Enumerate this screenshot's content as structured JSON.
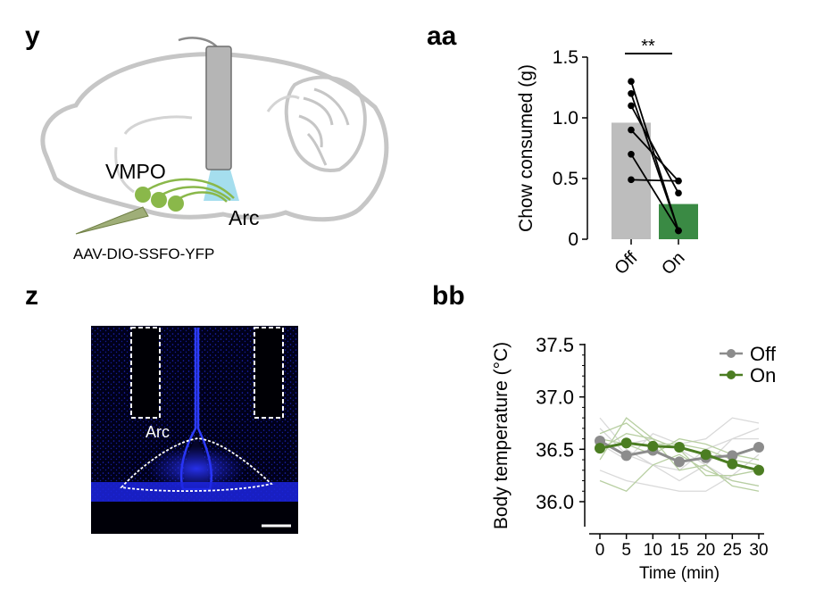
{
  "panels": {
    "y": "y",
    "z": "z",
    "aa": "aa",
    "bb": "bb"
  },
  "diagram": {
    "region_label": "VMPO",
    "target_label": "Arc",
    "virus_label": "AAV-DIO-SSFO-YFP",
    "colors": {
      "neuron": "#8ab84a",
      "fiber": "#c8c8c8",
      "light": "#8fd6ea",
      "outline": "#c6c6c6"
    }
  },
  "micrograph": {
    "region_label": "Arc",
    "colors": {
      "background": "#000010",
      "stain": "#1a22d8"
    }
  },
  "chart_data": [
    {
      "type": "bar",
      "panel": "aa",
      "categories": [
        "Off",
        "On"
      ],
      "values": [
        0.96,
        0.29
      ],
      "paired": [
        [
          1.3,
          0.07
        ],
        [
          1.2,
          0.07
        ],
        [
          1.1,
          0.38
        ],
        [
          0.9,
          0.48
        ],
        [
          0.7,
          0.07
        ],
        [
          0.49,
          0.48
        ]
      ],
      "title": "",
      "xlabel": "",
      "ylabel": "Chow consumed (g)",
      "ylim": [
        0,
        1.5
      ],
      "yticks": [
        "0",
        "0.5",
        "1.0",
        "1.5"
      ],
      "significance": "**",
      "colors": {
        "Off": "#bdbdbd",
        "On": "#3a8a44"
      }
    },
    {
      "type": "line",
      "panel": "bb",
      "x": [
        0,
        5,
        10,
        15,
        20,
        25,
        30
      ],
      "xticks": [
        "0",
        "5",
        "10",
        "15",
        "20",
        "25",
        "30"
      ],
      "series": [
        {
          "name": "Off",
          "color": "#8c8c8c",
          "values": [
            36.58,
            36.44,
            36.49,
            36.38,
            36.42,
            36.44,
            36.52
          ]
        },
        {
          "name": "On",
          "color": "#4b7d22",
          "values": [
            36.51,
            36.56,
            36.53,
            36.52,
            36.45,
            36.36,
            36.3
          ]
        }
      ],
      "individual": {
        "Off": [
          [
            36.7,
            36.45,
            36.35,
            36.2,
            36.35,
            36.6,
            36.7
          ],
          [
            36.5,
            36.55,
            36.6,
            36.5,
            36.35,
            36.2,
            36.15
          ],
          [
            36.3,
            36.2,
            36.15,
            36.1,
            36.1,
            36.25,
            36.45
          ],
          [
            36.55,
            36.4,
            36.65,
            36.55,
            36.6,
            36.8,
            36.75
          ],
          [
            36.8,
            36.5,
            36.35,
            36.3,
            36.5,
            36.6,
            36.6
          ]
        ],
        "On": [
          [
            36.4,
            36.8,
            36.6,
            36.3,
            36.35,
            36.15,
            36.1
          ],
          [
            36.65,
            36.75,
            36.55,
            36.55,
            36.5,
            36.4,
            36.35
          ],
          [
            36.2,
            36.1,
            36.35,
            36.45,
            36.3,
            36.2,
            36.15
          ],
          [
            36.6,
            36.55,
            36.45,
            36.6,
            36.55,
            36.45,
            36.4
          ],
          [
            36.5,
            36.65,
            36.6,
            36.5,
            36.25,
            36.25,
            36.3
          ]
        ]
      },
      "title": "",
      "xlabel": "Time (min)",
      "ylabel": "Body temperature (°C)",
      "ylim": [
        35.9,
        37.5
      ],
      "yticks": [
        "36.0",
        "36.5",
        "37.0",
        "37.5"
      ],
      "legend": "top-right"
    }
  ]
}
